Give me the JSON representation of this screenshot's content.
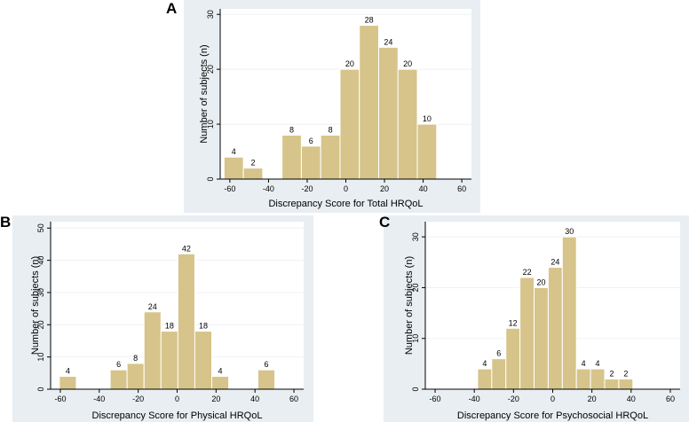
{
  "chart_data": [
    {
      "type": "bar",
      "panel_label": "A",
      "xlabel": "Discrepancy Score for Total HRQoL",
      "ylabel": "Number of subjects (n)",
      "xlim": [
        -65,
        65
      ],
      "ylim": [
        0,
        31
      ],
      "xticks": [
        -60,
        -40,
        -20,
        0,
        20,
        40,
        60
      ],
      "yticks": [
        0,
        10,
        20,
        30
      ],
      "bin_width": 10,
      "bins": [
        {
          "start": -63,
          "value": 4,
          "label": "4"
        },
        {
          "start": -53,
          "value": 2,
          "label": "2"
        },
        {
          "start": -33,
          "value": 8,
          "label": "8"
        },
        {
          "start": -23,
          "value": 6,
          "label": "6"
        },
        {
          "start": -13,
          "value": 8,
          "label": "8"
        },
        {
          "start": -3,
          "value": 20,
          "label": "20"
        },
        {
          "start": 7,
          "value": 28,
          "label": "28"
        },
        {
          "start": 17,
          "value": 24,
          "label": "24"
        },
        {
          "start": 27,
          "value": 20,
          "label": "20"
        },
        {
          "start": 37,
          "value": 10,
          "label": "10"
        }
      ]
    },
    {
      "type": "bar",
      "panel_label": "B",
      "xlabel": "Discrepancy Score for Physical HRQoL",
      "ylabel": "Number of subjects (n)",
      "xlim": [
        -65,
        65
      ],
      "ylim": [
        0,
        52
      ],
      "xticks": [
        -60,
        -40,
        -20,
        0,
        20,
        40,
        60
      ],
      "yticks": [
        0,
        10,
        20,
        30,
        40,
        50
      ],
      "bin_width": 8.7,
      "bins": [
        {
          "start": -60.5,
          "value": 4,
          "label": "4"
        },
        {
          "start": -34.4,
          "value": 6,
          "label": "6"
        },
        {
          "start": -25.7,
          "value": 8,
          "label": "8"
        },
        {
          "start": -17.0,
          "value": 24,
          "label": "24"
        },
        {
          "start": -8.3,
          "value": 18,
          "label": "18"
        },
        {
          "start": 0.4,
          "value": 42,
          "label": "42"
        },
        {
          "start": 9.1,
          "value": 18,
          "label": "18"
        },
        {
          "start": 17.8,
          "value": 4,
          "label": "4"
        },
        {
          "start": 41.5,
          "value": 6,
          "label": "6"
        }
      ]
    },
    {
      "type": "bar",
      "panel_label": "C",
      "xlabel": "Discrepancy Score for Psychosocial HRQoL",
      "ylabel": "Number of subjects (n)",
      "xlim": [
        -65,
        65
      ],
      "ylim": [
        0,
        33
      ],
      "xticks": [
        -60,
        -40,
        -20,
        0,
        20,
        40,
        60
      ],
      "yticks": [
        0,
        10,
        20,
        30
      ],
      "bin_width": 7.2,
      "bins": [
        {
          "start": -38.3,
          "value": 4,
          "label": "4"
        },
        {
          "start": -31.1,
          "value": 6,
          "label": "6"
        },
        {
          "start": -23.9,
          "value": 12,
          "label": "12"
        },
        {
          "start": -16.7,
          "value": 22,
          "label": "22"
        },
        {
          "start": -9.5,
          "value": 20,
          "label": "20"
        },
        {
          "start": -2.3,
          "value": 24,
          "label": "24"
        },
        {
          "start": 4.9,
          "value": 30,
          "label": "30"
        },
        {
          "start": 12.1,
          "value": 4,
          "label": "4"
        },
        {
          "start": 19.3,
          "value": 4,
          "label": "4"
        },
        {
          "start": 26.5,
          "value": 2,
          "label": "2"
        },
        {
          "start": 33.7,
          "value": 2,
          "label": "2"
        }
      ]
    }
  ]
}
